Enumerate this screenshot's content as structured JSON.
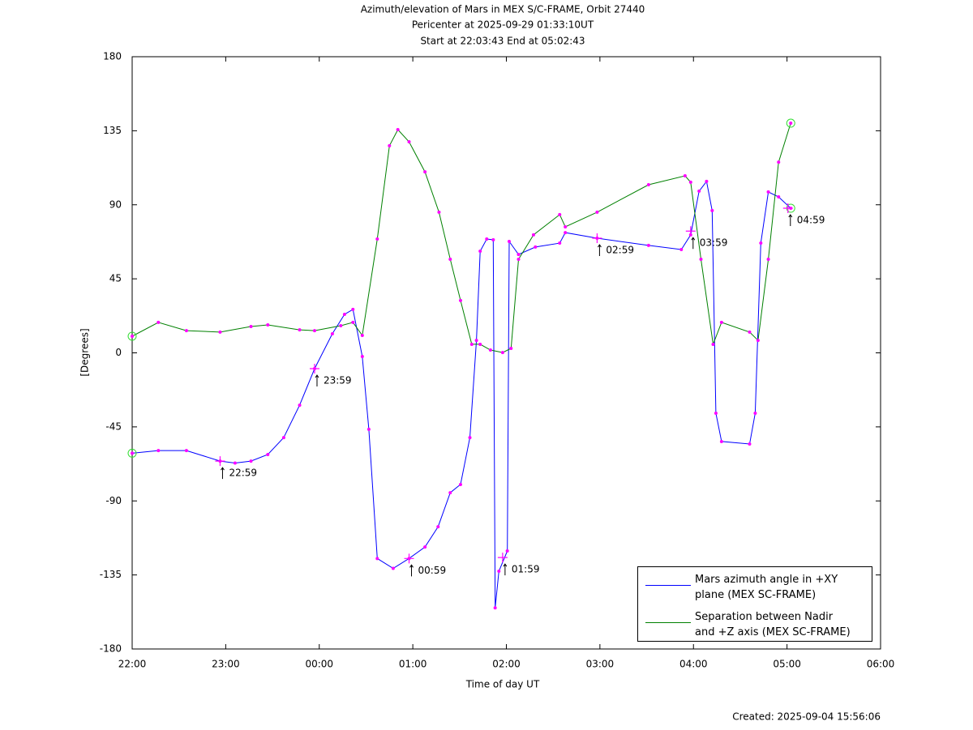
{
  "chart_data": {
    "type": "line",
    "title": "Azimuth/elevation of Mars in MEX S/C-FRAME,  Orbit 27440",
    "subtitle": [
      "Pericenter at 2025-09-29 01:33:10UT",
      "Start at 22:03:43 End at 05:02:43"
    ],
    "xlabel": "Time of day UT",
    "ylabel": "[Degrees]",
    "footnote": "Created: 2025-09-04 15:56:06",
    "xlim": [
      22,
      30
    ],
    "xticks": [
      {
        "value": 22,
        "label": "22:00"
      },
      {
        "value": 23,
        "label": "23:00"
      },
      {
        "value": 24,
        "label": "00:00"
      },
      {
        "value": 25,
        "label": "01:00"
      },
      {
        "value": 26,
        "label": "02:00"
      },
      {
        "value": 27,
        "label": "03:00"
      },
      {
        "value": 28,
        "label": "04:00"
      },
      {
        "value": 29,
        "label": "05:00"
      },
      {
        "value": 30,
        "label": "06:00"
      }
    ],
    "ylim": [
      -180,
      180
    ],
    "yticks": [
      -180,
      -135,
      -90,
      -45,
      0,
      45,
      90,
      135,
      180
    ],
    "marker_color": "#ff00ff",
    "legend": "lower right",
    "series": [
      {
        "name": "Mars azimuth angle in +XY\nplane (MEX SC-FRAME)",
        "color": "#0000ff",
        "x": [
          22.0,
          22.28,
          22.58,
          22.94,
          23.1,
          23.27,
          23.45,
          23.62,
          23.79,
          23.95,
          24.14,
          24.27,
          24.36,
          24.46,
          24.53,
          24.62,
          24.79,
          24.96,
          25.13,
          25.27,
          25.4,
          25.51,
          25.61,
          25.68,
          25.72,
          25.79,
          25.86,
          25.88,
          25.92,
          26.01,
          26.03,
          26.13,
          26.31,
          26.57,
          26.63,
          26.97,
          27.52,
          27.87,
          27.97,
          28.06,
          28.14,
          28.2,
          28.24,
          28.3,
          28.6,
          28.66,
          28.72,
          28.8,
          28.91,
          29.04
        ],
        "values": [
          -61,
          -59.4,
          -59.4,
          -65.8,
          -67,
          -65.8,
          -61.8,
          -51.5,
          -31.8,
          -9.6,
          11.6,
          23.4,
          26.4,
          -2.2,
          -46.5,
          -125,
          -131,
          -125,
          -118,
          -105.7,
          -85,
          -80,
          -51.5,
          7.6,
          61.8,
          69.2,
          68.7,
          -155,
          -132.7,
          -120.4,
          67.7,
          59.8,
          64.3,
          66.7,
          73.1,
          69.7,
          65.3,
          62.8,
          71.7,
          98.3,
          104.2,
          86.5,
          -36.7,
          -53.9,
          -55.4,
          -36.7,
          66.7,
          97.8,
          94.8,
          87.9
        ]
      },
      {
        "name": "Separation between Nadir\nand +Z axis (MEX SC-FRAME)",
        "color": "#008000",
        "x": [
          22.0,
          22.28,
          22.58,
          22.94,
          23.27,
          23.45,
          23.79,
          23.95,
          24.23,
          24.36,
          24.46,
          24.62,
          24.75,
          24.84,
          24.96,
          25.13,
          25.28,
          25.4,
          25.51,
          25.63,
          25.72,
          25.83,
          25.96,
          26.05,
          26.13,
          26.29,
          26.57,
          26.63,
          26.97,
          27.52,
          27.91,
          27.97,
          28.08,
          28.21,
          28.3,
          28.6,
          28.69,
          28.8,
          28.91,
          29.04
        ],
        "values": [
          10.1,
          18.5,
          13.5,
          12.6,
          16,
          17,
          14,
          13.5,
          16.5,
          18.5,
          10.6,
          69.2,
          125.9,
          135.7,
          128.3,
          110,
          85.5,
          56.9,
          31.8,
          5.2,
          5.2,
          1.7,
          0.2,
          2.7,
          56.9,
          71.7,
          84,
          76.6,
          85.5,
          102.2,
          107.6,
          103.7,
          56.9,
          5.2,
          18.5,
          12.6,
          7.6,
          56.9,
          115.9,
          139.6
        ]
      }
    ],
    "annotations": [
      {
        "text": "22:59",
        "x": 22.94,
        "y": -65.8
      },
      {
        "text": "23:59",
        "x": 23.95,
        "y": -9.6
      },
      {
        "text": "00:59",
        "x": 24.96,
        "y": -125
      },
      {
        "text": "01:59",
        "x": 25.96,
        "y": -124.4
      },
      {
        "text": "02:59",
        "x": 26.97,
        "y": 69.7
      },
      {
        "text": "03:59",
        "x": 27.97,
        "y": 74
      },
      {
        "text": "04:59",
        "x": 29.01,
        "y": 87.9
      }
    ]
  }
}
